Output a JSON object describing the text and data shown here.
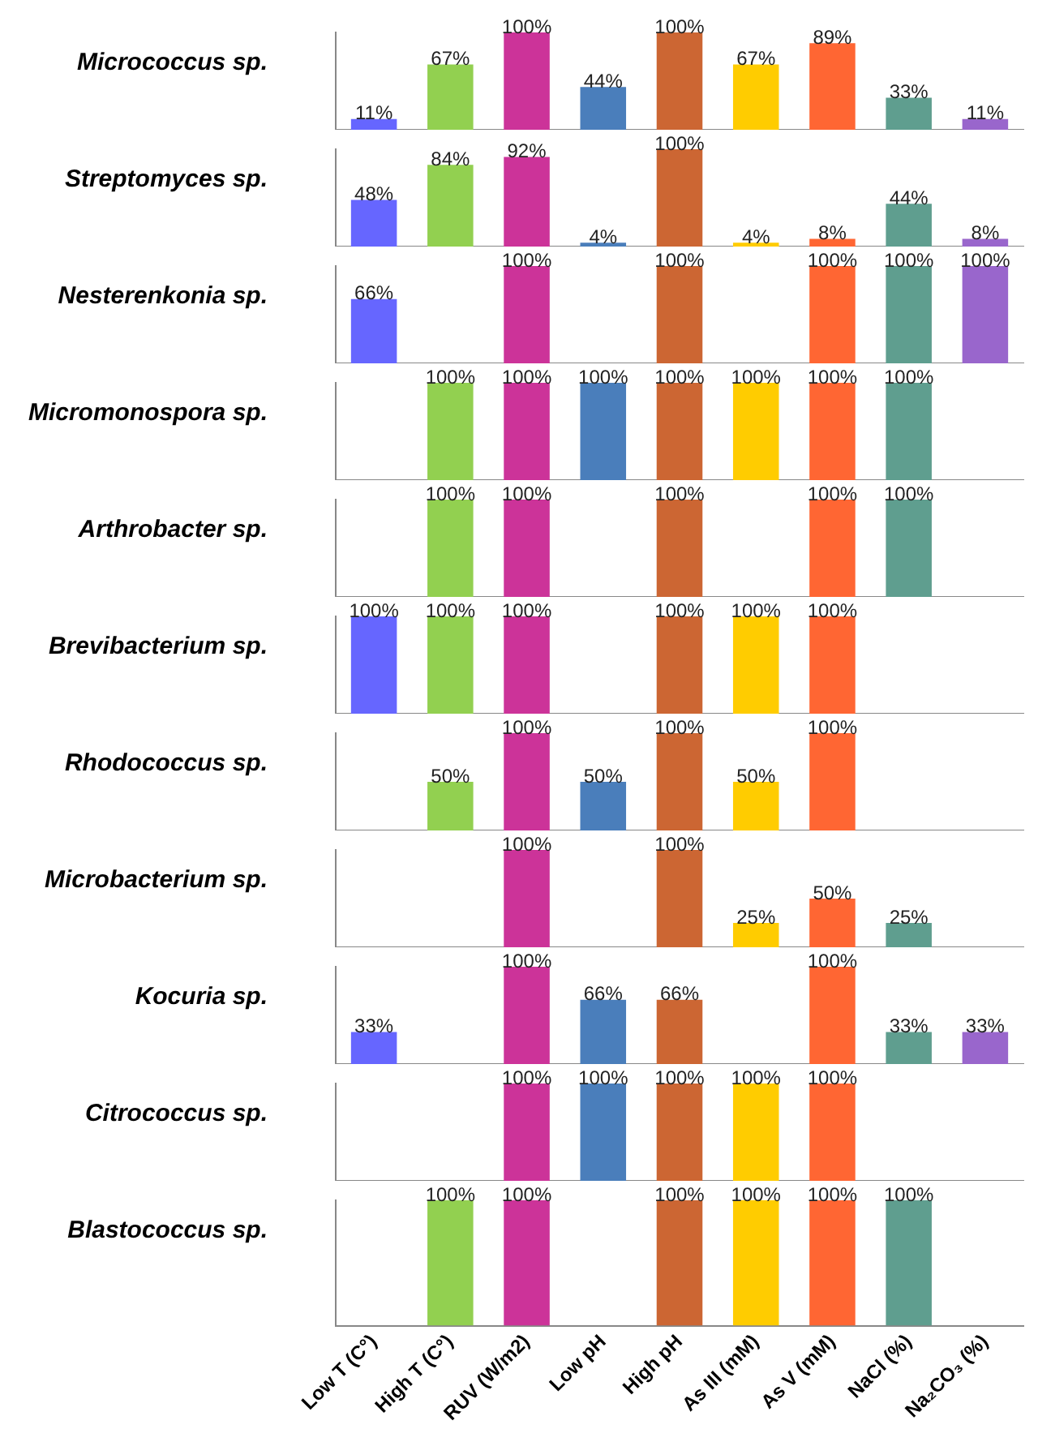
{
  "chart_data": [
    {
      "type": "bar",
      "ylabel": "Micrococcus sp.",
      "categories": [
        null,
        null,
        null,
        null,
        null,
        null,
        null,
        null,
        null
      ],
      "values": [
        11,
        67,
        100,
        44,
        100,
        67,
        89,
        33,
        11
      ],
      "value_labels": [
        "11%",
        "67%",
        "100%",
        "44%",
        "100%",
        "67%",
        "89%",
        "33%",
        "11%"
      ],
      "colors": [
        "#6666ff",
        "#92d050",
        "#cc3399",
        "#4a7ebb",
        "#cc6633",
        "#ffcc00",
        "#ff6633",
        "#5f9e8f",
        "#9966cc"
      ]
    },
    {
      "type": "bar",
      "ylabel": "Streptomyces sp.",
      "categories": [
        null,
        null,
        null,
        null,
        null,
        null,
        null,
        null,
        null
      ],
      "values": [
        48,
        84,
        92,
        4,
        100,
        4,
        8,
        44,
        8
      ],
      "value_labels": [
        "48%",
        "84%",
        "92%",
        "4%",
        "100%",
        "4%",
        "8%",
        "44%",
        "8%"
      ],
      "colors": [
        "#6666ff",
        "#92d050",
        "#cc3399",
        "#4a7ebb",
        "#cc6633",
        "#ffcc00",
        "#ff6633",
        "#5f9e8f",
        "#9966cc"
      ]
    },
    {
      "type": "bar",
      "ylabel": "Nesterenkonia sp.",
      "categories": [
        null,
        null,
        null,
        null,
        null,
        null,
        null,
        null,
        null
      ],
      "values": [
        66,
        null,
        100,
        null,
        100,
        null,
        100,
        100,
        100
      ],
      "value_labels": [
        "66%",
        null,
        "100%",
        null,
        "100%",
        null,
        "100%",
        "100%",
        "100%"
      ],
      "colors": [
        "#6666ff",
        "#92d050",
        "#cc3399",
        "#4a7ebb",
        "#cc6633",
        "#ffcc00",
        "#ff6633",
        "#5f9e8f",
        "#9966cc"
      ]
    },
    {
      "type": "bar",
      "ylabel": "Micromonospora sp.",
      "categories": [
        null,
        null,
        null,
        null,
        null,
        null,
        null,
        null,
        null
      ],
      "values": [
        null,
        100,
        100,
        100,
        100,
        100,
        100,
        100,
        null
      ],
      "value_labels": [
        null,
        "100%",
        "100%",
        "100%",
        "100%",
        "100%",
        "100%",
        "100%",
        null
      ],
      "colors": [
        "#6666ff",
        "#92d050",
        "#cc3399",
        "#4a7ebb",
        "#cc6633",
        "#ffcc00",
        "#ff6633",
        "#5f9e8f",
        "#9966cc"
      ]
    },
    {
      "type": "bar",
      "ylabel": "Arthrobacter sp.",
      "categories": [
        null,
        null,
        null,
        null,
        null,
        null,
        null,
        null,
        null
      ],
      "values": [
        null,
        100,
        100,
        null,
        100,
        null,
        100,
        100,
        null
      ],
      "value_labels": [
        null,
        "100%",
        "100%",
        null,
        "100%",
        null,
        "100%",
        "100%",
        null
      ],
      "colors": [
        "#6666ff",
        "#92d050",
        "#cc3399",
        "#4a7ebb",
        "#cc6633",
        "#ffcc00",
        "#ff6633",
        "#5f9e8f",
        "#9966cc"
      ]
    },
    {
      "type": "bar",
      "ylabel": "Brevibacterium sp.",
      "categories": [
        null,
        null,
        null,
        null,
        null,
        null,
        null,
        null,
        null
      ],
      "values": [
        100,
        100,
        100,
        null,
        100,
        100,
        100,
        null,
        null
      ],
      "value_labels": [
        "100%",
        "100%",
        "100%",
        null,
        "100%",
        "100%",
        "100%",
        null,
        null
      ],
      "colors": [
        "#6666ff",
        "#92d050",
        "#cc3399",
        "#4a7ebb",
        "#cc6633",
        "#ffcc00",
        "#ff6633",
        "#5f9e8f",
        "#9966cc"
      ]
    },
    {
      "type": "bar",
      "ylabel": "Rhodococcus sp.",
      "categories": [
        null,
        null,
        null,
        null,
        null,
        null,
        null,
        null,
        null
      ],
      "values": [
        null,
        50,
        100,
        50,
        100,
        50,
        100,
        null,
        null
      ],
      "value_labels": [
        null,
        "50%",
        "100%",
        "50%",
        "100%",
        "50%",
        "100%",
        null,
        null
      ],
      "colors": [
        "#6666ff",
        "#92d050",
        "#cc3399",
        "#4a7ebb",
        "#cc6633",
        "#ffcc00",
        "#ff6633",
        "#5f9e8f",
        "#9966cc"
      ]
    },
    {
      "type": "bar",
      "ylabel": "Microbacterium sp.",
      "categories": [
        null,
        null,
        null,
        null,
        null,
        null,
        null,
        null,
        null
      ],
      "values": [
        null,
        null,
        100,
        null,
        100,
        25,
        50,
        25,
        null
      ],
      "value_labels": [
        null,
        null,
        "100%",
        null,
        "100%",
        "25%",
        "50%",
        "25%",
        null
      ],
      "colors": [
        "#6666ff",
        "#92d050",
        "#cc3399",
        "#4a7ebb",
        "#cc6633",
        "#ffcc00",
        "#ff6633",
        "#5f9e8f",
        "#9966cc"
      ]
    },
    {
      "type": "bar",
      "ylabel": "Kocuria sp.",
      "categories": [
        null,
        null,
        null,
        null,
        null,
        null,
        null,
        null,
        null
      ],
      "values": [
        33,
        null,
        100,
        66,
        66,
        null,
        100,
        33,
        33
      ],
      "value_labels": [
        "33%",
        null,
        "100%",
        "66%",
        "66%",
        null,
        "100%",
        "33%",
        "33%"
      ],
      "colors": [
        "#6666ff",
        "#92d050",
        "#cc3399",
        "#4a7ebb",
        "#cc6633",
        "#ffcc00",
        "#ff6633",
        "#5f9e8f",
        "#9966cc"
      ]
    },
    {
      "type": "bar",
      "ylabel": "Citrococcus sp.",
      "categories": [
        null,
        null,
        null,
        null,
        null,
        null,
        null,
        null,
        null
      ],
      "values": [
        null,
        null,
        100,
        100,
        100,
        100,
        100,
        null,
        null
      ],
      "value_labels": [
        null,
        null,
        "100%",
        "100%",
        "100%",
        "100%",
        "100%",
        null,
        null
      ],
      "colors": [
        "#6666ff",
        "#92d050",
        "#cc3399",
        "#4a7ebb",
        "#cc6633",
        "#ffcc00",
        "#ff6633",
        "#5f9e8f",
        "#9966cc"
      ]
    },
    {
      "type": "bar",
      "ylabel": "Blastococcus sp.",
      "categories": [
        "Low T (C°)",
        "High T (C°)",
        "RUV (W/m2)",
        "Low pH",
        "High pH",
        "As III (mM)",
        "As V (mM)",
        "NaCl (%)",
        "Na₂CO₃ (%)"
      ],
      "values": [
        null,
        100,
        100,
        null,
        100,
        100,
        100,
        100,
        null
      ],
      "value_labels": [
        null,
        "100%",
        "100%",
        null,
        "100%",
        "100%",
        "100%",
        "100%",
        null
      ],
      "colors": [
        "#6666ff",
        "#92d050",
        "#cc3399",
        "#4a7ebb",
        "#cc6633",
        "#ffcc00",
        "#ff6633",
        "#5f9e8f",
        "#9966cc"
      ],
      "tick_labels": "x"
    }
  ]
}
